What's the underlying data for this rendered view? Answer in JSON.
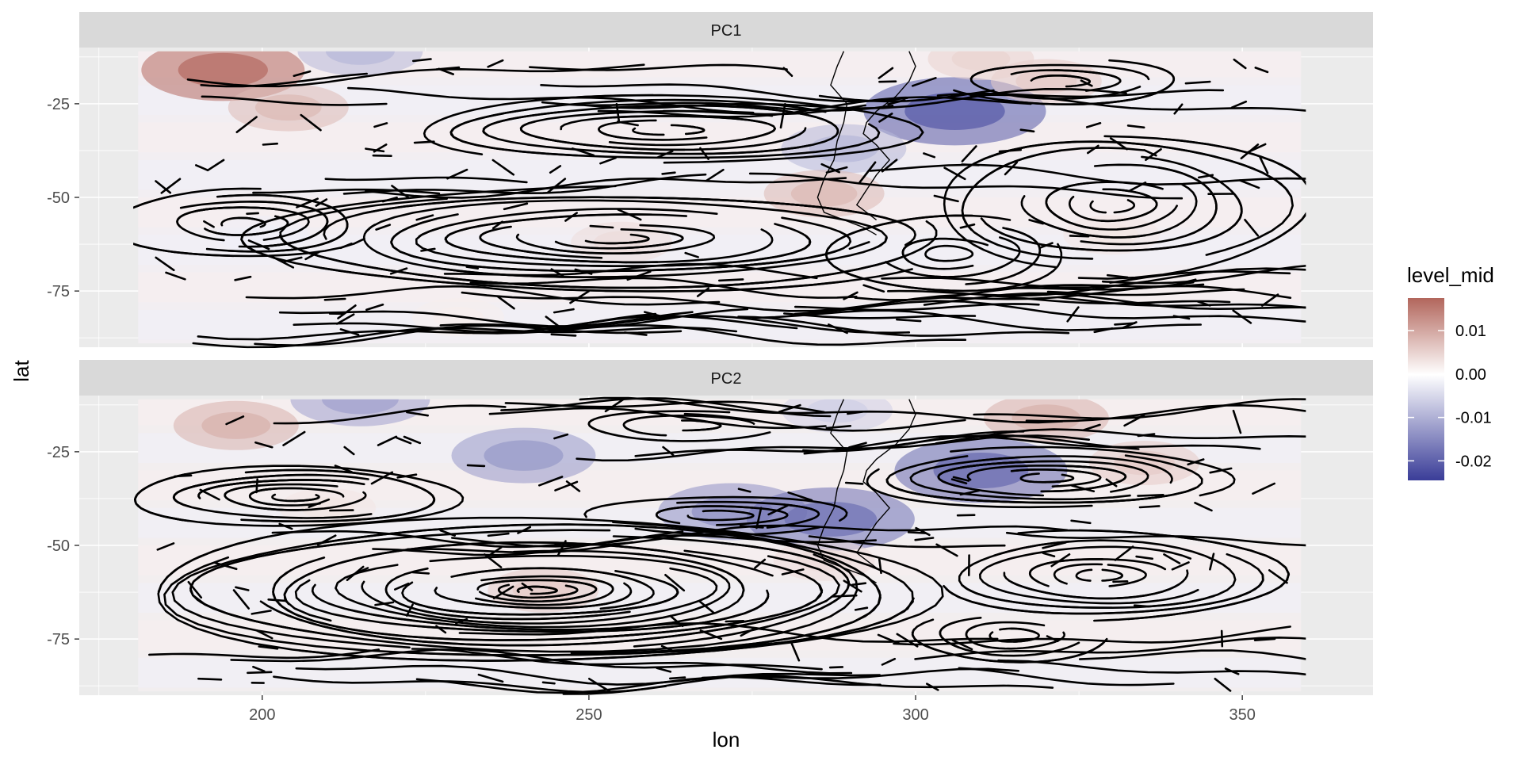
{
  "chart_data": {
    "type": "heatmap",
    "title": "",
    "xlabel": "lon",
    "ylabel": "lat",
    "xlim": [
      172,
      370
    ],
    "ylim": [
      -90,
      -10
    ],
    "x_ticks": [
      200,
      250,
      300,
      350
    ],
    "y_ticks": [
      -25,
      -50,
      -75
    ],
    "x_tick_labels": [
      "200",
      "250",
      "300",
      "350"
    ],
    "y_tick_labels": [
      "-25",
      "-50",
      "-75"
    ],
    "data_extent": {
      "lon": [
        181,
        359
      ],
      "lat": [
        -89,
        -11
      ]
    },
    "legend": {
      "title": "level_mid",
      "position": "right",
      "range": [
        -0.0245,
        0.0175
      ],
      "breaks": [
        0.01,
        0.0,
        -0.01,
        -0.02
      ],
      "labels": [
        "0.01",
        "0.00",
        "-0.01",
        "-0.02"
      ],
      "colors": {
        "low": "#3a3d98",
        "mid": "#ffffff",
        "high": "#b2665c"
      }
    },
    "panels": [
      {
        "label": "PC1",
        "anomalies": [
          {
            "lon": 194,
            "lat": -16,
            "value": 0.017
          },
          {
            "lon": 204,
            "lat": -26,
            "value": 0.008
          },
          {
            "lon": 215,
            "lat": -11,
            "value": -0.009
          },
          {
            "lon": 306,
            "lat": -27,
            "value": -0.021
          },
          {
            "lon": 320,
            "lat": -19,
            "value": 0.006
          },
          {
            "lon": 310,
            "lat": -13,
            "value": 0.005
          },
          {
            "lon": 289,
            "lat": -37,
            "value": -0.009
          },
          {
            "lon": 286,
            "lat": -49,
            "value": 0.008
          },
          {
            "lon": 255,
            "lat": -62,
            "value": 0.004
          },
          {
            "lon": 330,
            "lat": -60,
            "value": 0.003
          },
          {
            "lon": 200,
            "lat": -60,
            "value": -0.002
          },
          {
            "lon": 230,
            "lat": -82,
            "value": 0.002
          }
        ],
        "vortices": [
          {
            "lon": 254,
            "lat": -61,
            "rx": 55,
            "ry": 14,
            "rings": 11,
            "sense": 1
          },
          {
            "lon": 330,
            "lat": -52,
            "rx": 30,
            "ry": 19,
            "rings": 9,
            "sense": -1
          },
          {
            "lon": 197,
            "lat": -57,
            "rx": 20,
            "ry": 9,
            "rings": 6,
            "sense": 1
          },
          {
            "lon": 262,
            "lat": -32,
            "rx": 38,
            "ry": 9,
            "rings": 7,
            "sense": -1
          },
          {
            "lon": 322,
            "lat": -19,
            "rx": 18,
            "ry": 6,
            "rings": 4,
            "sense": 1
          },
          {
            "lon": 305,
            "lat": -65,
            "rx": 18,
            "ry": 10,
            "rings": 5,
            "sense": 1
          }
        ]
      },
      {
        "label": "PC2",
        "anomalies": [
          {
            "lon": 196,
            "lat": -18,
            "value": 0.009
          },
          {
            "lon": 215,
            "lat": -11,
            "value": -0.012
          },
          {
            "lon": 240,
            "lat": -26,
            "value": -0.013
          },
          {
            "lon": 272,
            "lat": -41,
            "value": -0.014
          },
          {
            "lon": 287,
            "lat": -43,
            "value": -0.018
          },
          {
            "lon": 310,
            "lat": -30,
            "value": -0.019
          },
          {
            "lon": 320,
            "lat": -16,
            "value": 0.009
          },
          {
            "lon": 335,
            "lat": -28,
            "value": 0.006
          },
          {
            "lon": 288,
            "lat": -14,
            "value": -0.006
          },
          {
            "lon": 243,
            "lat": -62,
            "value": 0.006
          },
          {
            "lon": 286,
            "lat": -54,
            "value": 0.004
          },
          {
            "lon": 210,
            "lat": -40,
            "value": 0.003
          }
        ],
        "vortices": [
          {
            "lon": 242,
            "lat": -62,
            "rx": 60,
            "ry": 19,
            "rings": 20,
            "sense": 1
          },
          {
            "lon": 205,
            "lat": -37,
            "rx": 25,
            "ry": 8,
            "rings": 7,
            "sense": -1
          },
          {
            "lon": 320,
            "lat": -32,
            "rx": 28,
            "ry": 8,
            "rings": 7,
            "sense": 1
          },
          {
            "lon": 328,
            "lat": -58,
            "rx": 28,
            "ry": 12,
            "rings": 8,
            "sense": -1
          },
          {
            "lon": 265,
            "lat": -18,
            "rx": 15,
            "ry": 4,
            "rings": 3,
            "sense": 1
          },
          {
            "lon": 270,
            "lat": -42,
            "rx": 20,
            "ry": 5,
            "rings": 4,
            "sense": -1
          },
          {
            "lon": 315,
            "lat": -74,
            "rx": 15,
            "ry": 7,
            "rings": 4,
            "sense": 1
          }
        ]
      }
    ],
    "streamlines": "black streamline arrows over both panels",
    "background_field_colors": {
      "panel": "#ebebeb",
      "strip": "#d9d9d9"
    }
  }
}
